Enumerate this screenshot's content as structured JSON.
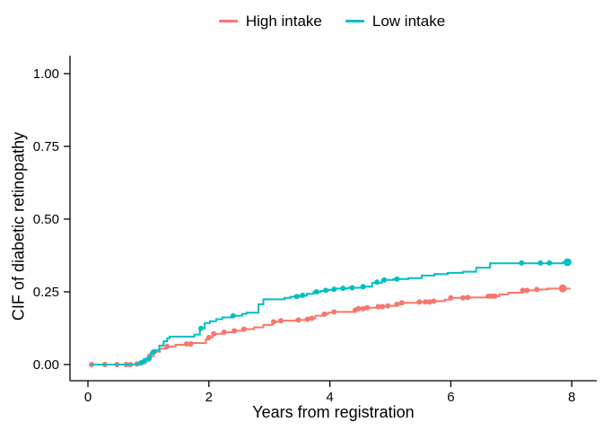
{
  "chart_data": {
    "type": "line",
    "subtype": "step-cumulative-incidence",
    "title": "",
    "xlabel": "Years from registration",
    "ylabel": "CIF of diabetic retinopathy",
    "grid": false,
    "legend_position": "top-center",
    "axis_color": "#000000",
    "background": "#FFFFFF",
    "xlim": [
      -0.3,
      8.4
    ],
    "ylim": [
      -0.055,
      1.06
    ],
    "x_ticks": {
      "values": [
        0,
        2,
        4,
        6,
        8
      ],
      "labels": [
        "0",
        "2",
        "4",
        "6",
        "8"
      ]
    },
    "y_ticks": {
      "values": [
        0,
        0.25,
        0.5,
        0.75,
        1.0
      ],
      "labels": [
        "0.00",
        "0.25",
        "0.50",
        "0.75",
        "1.00"
      ]
    },
    "series": [
      {
        "name": "High intake",
        "color": "#F8766D",
        "steps": [
          [
            0.05,
            0
          ],
          [
            0.88,
            0.004
          ],
          [
            0.95,
            0.013
          ],
          [
            1.02,
            0.029
          ],
          [
            1.09,
            0.044
          ],
          [
            1.19,
            0.055
          ],
          [
            1.3,
            0.062
          ],
          [
            1.45,
            0.068
          ],
          [
            1.6,
            0.071
          ],
          [
            1.72,
            0.074
          ],
          [
            1.95,
            0.086
          ],
          [
            2.0,
            0.093
          ],
          [
            2.06,
            0.106
          ],
          [
            2.25,
            0.111
          ],
          [
            2.42,
            0.116
          ],
          [
            2.58,
            0.122
          ],
          [
            2.75,
            0.128
          ],
          [
            2.9,
            0.136
          ],
          [
            3.05,
            0.147
          ],
          [
            3.18,
            0.151
          ],
          [
            3.44,
            0.153
          ],
          [
            3.6,
            0.156
          ],
          [
            3.68,
            0.159
          ],
          [
            3.76,
            0.168
          ],
          [
            3.88,
            0.173
          ],
          [
            3.97,
            0.178
          ],
          [
            4.06,
            0.181
          ],
          [
            4.4,
            0.187
          ],
          [
            4.47,
            0.192
          ],
          [
            4.62,
            0.195
          ],
          [
            4.79,
            0.199
          ],
          [
            4.93,
            0.202
          ],
          [
            5.08,
            0.207
          ],
          [
            5.19,
            0.212
          ],
          [
            5.45,
            0.215
          ],
          [
            5.7,
            0.218
          ],
          [
            5.9,
            0.223
          ],
          [
            6.0,
            0.229
          ],
          [
            6.3,
            0.231
          ],
          [
            6.6,
            0.235
          ],
          [
            6.8,
            0.241
          ],
          [
            6.95,
            0.247
          ],
          [
            7.19,
            0.255
          ],
          [
            7.42,
            0.258
          ],
          [
            7.6,
            0.261
          ],
          [
            7.97,
            0.262
          ]
        ],
        "markers": [
          [
            0.06,
            0
          ],
          [
            0.28,
            0
          ],
          [
            0.48,
            0
          ],
          [
            0.63,
            0
          ],
          [
            0.7,
            0
          ],
          [
            0.81,
            0.002
          ],
          [
            1.02,
            0.029
          ],
          [
            1.09,
            0.044
          ],
          [
            1.31,
            0.062
          ],
          [
            1.63,
            0.071
          ],
          [
            1.7,
            0.071
          ],
          [
            2.0,
            0.093
          ],
          [
            2.08,
            0.106
          ],
          [
            2.25,
            0.111
          ],
          [
            2.42,
            0.116
          ],
          [
            2.58,
            0.122
          ],
          [
            3.07,
            0.147
          ],
          [
            3.19,
            0.151
          ],
          [
            3.48,
            0.153
          ],
          [
            3.63,
            0.156
          ],
          [
            3.7,
            0.159
          ],
          [
            3.91,
            0.173
          ],
          [
            4.07,
            0.181
          ],
          [
            4.42,
            0.187
          ],
          [
            4.47,
            0.192
          ],
          [
            4.55,
            0.192
          ],
          [
            4.62,
            0.195
          ],
          [
            4.8,
            0.199
          ],
          [
            4.87,
            0.199
          ],
          [
            4.96,
            0.202
          ],
          [
            5.11,
            0.207
          ],
          [
            5.19,
            0.212
          ],
          [
            5.48,
            0.215
          ],
          [
            5.58,
            0.215
          ],
          [
            5.65,
            0.215
          ],
          [
            5.72,
            0.218
          ],
          [
            6.0,
            0.229
          ],
          [
            6.2,
            0.229
          ],
          [
            6.28,
            0.231
          ],
          [
            6.62,
            0.235
          ],
          [
            6.68,
            0.235
          ],
          [
            6.73,
            0.235
          ],
          [
            7.19,
            0.255
          ],
          [
            7.26,
            0.255
          ],
          [
            7.42,
            0.258
          ]
        ],
        "end_marker": [
          7.85,
          0.262
        ]
      },
      {
        "name": "Low intake",
        "color": "#00BFC4",
        "steps": [
          [
            0.05,
            0
          ],
          [
            0.82,
            0.006
          ],
          [
            0.9,
            0.013
          ],
          [
            0.97,
            0.019
          ],
          [
            1.04,
            0.04
          ],
          [
            1.11,
            0.049
          ],
          [
            1.18,
            0.065
          ],
          [
            1.25,
            0.08
          ],
          [
            1.31,
            0.09
          ],
          [
            1.35,
            0.096
          ],
          [
            1.76,
            0.103
          ],
          [
            1.85,
            0.124
          ],
          [
            1.93,
            0.143
          ],
          [
            2.02,
            0.149
          ],
          [
            2.12,
            0.156
          ],
          [
            2.22,
            0.162
          ],
          [
            2.4,
            0.168
          ],
          [
            2.55,
            0.174
          ],
          [
            2.62,
            0.178
          ],
          [
            2.82,
            0.207
          ],
          [
            2.9,
            0.224
          ],
          [
            3.25,
            0.229
          ],
          [
            3.35,
            0.233
          ],
          [
            3.5,
            0.237
          ],
          [
            3.62,
            0.243
          ],
          [
            3.73,
            0.249
          ],
          [
            3.85,
            0.253
          ],
          [
            3.97,
            0.257
          ],
          [
            4.1,
            0.261
          ],
          [
            4.3,
            0.264
          ],
          [
            4.52,
            0.268
          ],
          [
            4.7,
            0.281
          ],
          [
            4.86,
            0.291
          ],
          [
            5.05,
            0.294
          ],
          [
            5.3,
            0.297
          ],
          [
            5.52,
            0.306
          ],
          [
            5.73,
            0.311
          ],
          [
            5.95,
            0.315
          ],
          [
            6.2,
            0.319
          ],
          [
            6.42,
            0.333
          ],
          [
            6.65,
            0.348
          ],
          [
            7.85,
            0.351
          ],
          [
            7.98,
            0.353
          ]
        ],
        "markers": [
          [
            0.88,
            0.006
          ],
          [
            0.94,
            0.013
          ],
          [
            1.0,
            0.019
          ],
          [
            1.08,
            0.043
          ],
          [
            1.87,
            0.124
          ],
          [
            2.4,
            0.168
          ],
          [
            3.45,
            0.234
          ],
          [
            3.55,
            0.238
          ],
          [
            3.78,
            0.25
          ],
          [
            3.93,
            0.255
          ],
          [
            4.07,
            0.259
          ],
          [
            4.22,
            0.262
          ],
          [
            4.37,
            0.264
          ],
          [
            4.55,
            0.268
          ],
          [
            4.78,
            0.283
          ],
          [
            4.9,
            0.291
          ],
          [
            5.11,
            0.294
          ],
          [
            7.17,
            0.349
          ],
          [
            7.48,
            0.349
          ],
          [
            7.63,
            0.349
          ]
        ],
        "end_marker": [
          7.93,
          0.352
        ]
      }
    ]
  }
}
